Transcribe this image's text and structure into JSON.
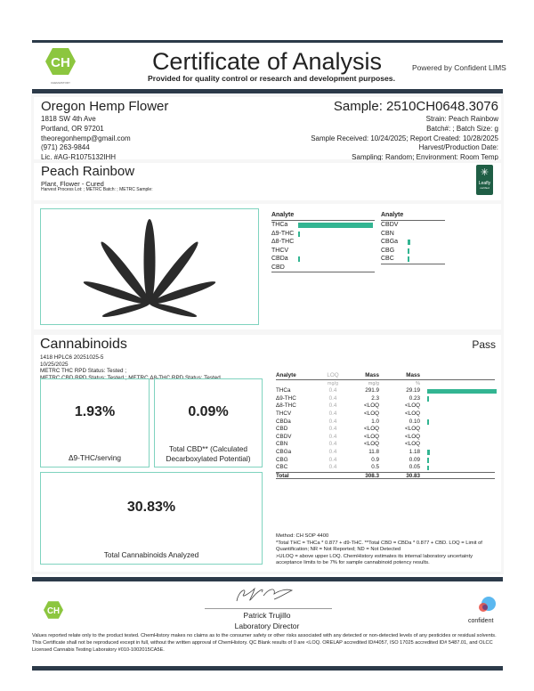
{
  "header": {
    "title": "Certificate of Analysis",
    "subtitle": "Provided for quality control or research and development purposes.",
    "powered_by": "Powered by Confident LIMS",
    "logo_text": "CH",
    "logo_caption": "CHEMHISTORY"
  },
  "client": {
    "name": "Oregon Hemp Flower",
    "address1": "1818 SW 4th Ave",
    "address2": "Portland, OR 97201",
    "email": "theoregonhemp@gmail.com",
    "phone": "(971) 263-9844",
    "license": "Lic. #AG-R1075132IHH"
  },
  "sample": {
    "id": "Sample: 2510CH0648.3076",
    "strain": "Strain: Peach Rainbow",
    "batch": "Batch#: ; Batch Size:  g",
    "dates": "Sample Received: 10/24/2025; Report Created: 10/28/2025",
    "harvest": "Harvest/Production Date:",
    "sampling": "Sampling: Random; Environment: Room Temp"
  },
  "product": {
    "name": "Peach Rainbow",
    "type": "Plant, Flower - Cured",
    "lots": "Harvest Process Lot: ; METRC Batch: ; METRC Sample:",
    "badge": "Leafly",
    "badge_sub": "certified"
  },
  "summary": {
    "header": "Analyte",
    "left": [
      {
        "name": "THCa",
        "pct": 29.19
      },
      {
        "name": "Δ9-THC",
        "pct": 0.23
      },
      {
        "name": "Δ8-THC",
        "pct": 0
      },
      {
        "name": "THCV",
        "pct": 0
      },
      {
        "name": "CBDa",
        "pct": 0.1
      },
      {
        "name": "CBD",
        "pct": 0
      }
    ],
    "right": [
      {
        "name": "CBDV",
        "pct": 0
      },
      {
        "name": "CBN",
        "pct": 0
      },
      {
        "name": "CBGa",
        "pct": 1.18
      },
      {
        "name": "CBG",
        "pct": 0.09
      },
      {
        "name": "CBC",
        "pct": 0.05
      }
    ]
  },
  "cannabinoids": {
    "title": "Cannabinoids",
    "status": "Pass",
    "batch": "1418 HPLC6 20251025-5",
    "date": "10/25/2025",
    "metrc1": "METRC THC RPD Status: Tested ;",
    "metrc2": "METRC CBD RPD Status: Tested ; METRC Δ8-THC RPD Status: Tested",
    "kpis": [
      {
        "value": "1.93%",
        "label": "Δ9-THC/serving"
      },
      {
        "value": "0.09%",
        "label": "Total CBD** (Calculated Decarboxylated Potential)"
      },
      {
        "value": "30.83%",
        "label": "Total Cannabinoids Analyzed"
      }
    ],
    "table": {
      "headers": [
        "Analyte",
        "LOQ",
        "Mass",
        "Mass"
      ],
      "units": [
        "",
        "mg/g",
        "mg/g",
        "%"
      ],
      "rows": [
        [
          "THCa",
          "0.4",
          "291.9",
          "29.19"
        ],
        [
          "Δ9-THC",
          "0.4",
          "2.3",
          "0.23"
        ],
        [
          "Δ8-THC",
          "0.4",
          "<LOQ",
          "<LOQ"
        ],
        [
          "THCV",
          "0.4",
          "<LOQ",
          "<LOQ"
        ],
        [
          "CBDa",
          "0.4",
          "1.0",
          "0.10"
        ],
        [
          "CBD",
          "0.4",
          "<LOQ",
          "<LOQ"
        ],
        [
          "CBDV",
          "0.4",
          "<LOQ",
          "<LOQ"
        ],
        [
          "CBN",
          "0.4",
          "<LOQ",
          "<LOQ"
        ],
        [
          "CBGa",
          "0.4",
          "11.8",
          "1.18"
        ],
        [
          "CBG",
          "0.4",
          "0.9",
          "0.09"
        ],
        [
          "CBC",
          "0.4",
          "0.5",
          "0.05"
        ]
      ],
      "total": [
        "Total",
        "",
        "308.3",
        "30.83"
      ]
    },
    "notes": [
      "Method: CH SOP 4400",
      "*Total THC = THCa * 0.877 + d9-THC. **Total CBD = CBDa * 0.877 + CBD. LOQ = Limit of Quantification; NR = Not Reported; ND = Not Detected",
      ">ULOQ = above upper LOQ. ChemHistory estimates its internal laboratory uncertainty acceptance limits to be 7% for sample cannabinoid potency results."
    ]
  },
  "footer": {
    "signer": "Patrick Trujillo",
    "signer_title": "Laboratory Director",
    "confident": "confident",
    "disclaimer": "Values reported relate only to the product tested. ChemHistory makes no claims as to the consumer safety or other risks associated with any detected or non-detected levels of any pesticides or residual solvents. This Certificate shall not be reproduced except in full, without the written approval of ChemHistory. QC Blank results of 0 are <LOQ.  ORELAP accredited ID#4057, ISO 17025 accredited ID# 5487.01, and OLCC Licensed Cannabis Testing Laboratory #010-1002015CA5E."
  },
  "colors": {
    "accent": "#33b592",
    "dark_bar": "#2c3a49",
    "logo_green": "#8cc63f"
  }
}
